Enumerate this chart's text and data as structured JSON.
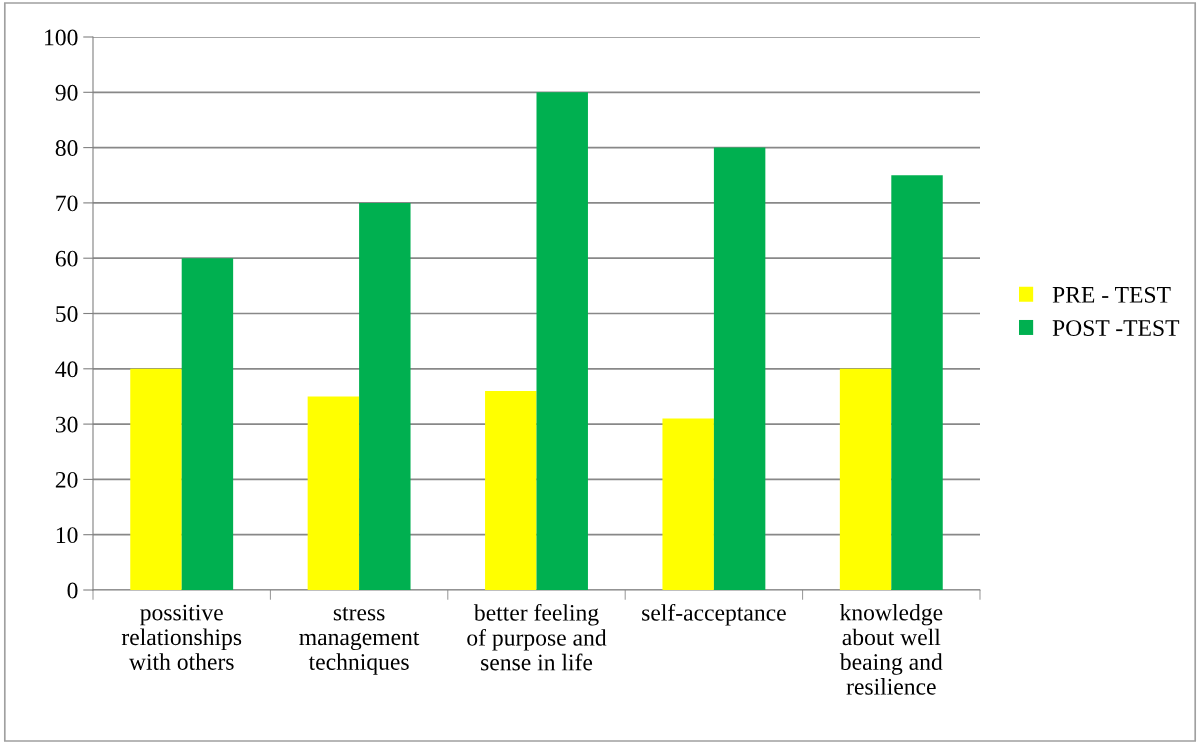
{
  "chart_data": {
    "type": "bar",
    "categories": [
      "possitive relationships with others",
      "stress management techniques",
      "better feeling of purpose and sense in life",
      "self-acceptance",
      "knowledge about well beaing and resilience"
    ],
    "series": [
      {
        "name": "PRE - TEST",
        "color": "#ffff00",
        "values": [
          40,
          35,
          36,
          31,
          40
        ]
      },
      {
        "name": "POST -TEST",
        "color": "#00b050",
        "values": [
          60,
          70,
          90,
          80,
          75
        ]
      }
    ],
    "ylim": [
      0,
      100
    ],
    "yticks": [
      0,
      10,
      20,
      30,
      40,
      50,
      60,
      70,
      80,
      90,
      100
    ],
    "grid": "y",
    "legend": "right"
  }
}
